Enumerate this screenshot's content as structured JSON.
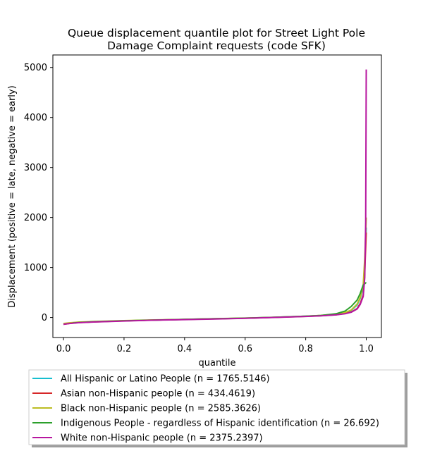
{
  "chart_data": {
    "type": "line",
    "title": "Queue displacement quantile plot for Street Light Pole\nDamage Complaint  requests (code SFK)",
    "xlabel": "quantile",
    "ylabel": "Displacement (positive = late, negative = early)",
    "xlim": [
      -0.035,
      1.05
    ],
    "ylim": [
      -400,
      5250
    ],
    "xticks": [
      0.0,
      0.2,
      0.4,
      0.6,
      0.8,
      1.0
    ],
    "xtick_labels": [
      "0.0",
      "0.2",
      "0.4",
      "0.6",
      "0.8",
      "1.0"
    ],
    "yticks": [
      0,
      1000,
      2000,
      3000,
      4000,
      5000
    ],
    "ytick_labels": [
      "0",
      "1000",
      "2000",
      "3000",
      "4000",
      "5000"
    ],
    "grid": false,
    "legend_position": "below-plot",
    "series": [
      {
        "name": "All Hispanic or Latino People (n = 1765.5146)",
        "color": "#17becf",
        "x": [
          0.0,
          0.02,
          0.05,
          0.1,
          0.2,
          0.3,
          0.4,
          0.5,
          0.6,
          0.7,
          0.8,
          0.85,
          0.9,
          0.93,
          0.95,
          0.97,
          0.98,
          0.99,
          0.995,
          1.0
        ],
        "y": [
          -130,
          -115,
          -100,
          -85,
          -65,
          -50,
          -38,
          -25,
          -12,
          5,
          25,
          40,
          65,
          95,
          140,
          250,
          380,
          600,
          1100,
          1800
        ]
      },
      {
        "name": "Asian non-Hispanic people (n = 434.4619)",
        "color": "#d62728",
        "x": [
          0.0,
          0.02,
          0.05,
          0.1,
          0.2,
          0.3,
          0.4,
          0.5,
          0.6,
          0.7,
          0.8,
          0.85,
          0.9,
          0.93,
          0.95,
          0.97,
          0.98,
          0.99,
          0.995,
          1.0
        ],
        "y": [
          -135,
          -118,
          -102,
          -88,
          -67,
          -52,
          -40,
          -27,
          -14,
          3,
          22,
          35,
          55,
          80,
          110,
          180,
          280,
          450,
          900,
          1700
        ]
      },
      {
        "name": "Black non-Hispanic people (n = 2585.3626)",
        "color": "#bcbd22",
        "x": [
          0.0,
          0.02,
          0.05,
          0.1,
          0.2,
          0.3,
          0.4,
          0.5,
          0.6,
          0.7,
          0.8,
          0.85,
          0.9,
          0.93,
          0.95,
          0.97,
          0.98,
          0.99,
          0.995,
          1.0
        ],
        "y": [
          -120,
          -105,
          -92,
          -80,
          -62,
          -48,
          -36,
          -24,
          -11,
          6,
          26,
          42,
          68,
          100,
          150,
          270,
          400,
          650,
          1200,
          2000
        ]
      },
      {
        "name": "Indigenous People - regardless of Hispanic identification (n = 26.692)",
        "color": "#2ca02c",
        "x": [
          0.03,
          0.05,
          0.1,
          0.2,
          0.3,
          0.4,
          0.5,
          0.6,
          0.7,
          0.8,
          0.85,
          0.9,
          0.93,
          0.95,
          0.97,
          0.98,
          0.99,
          1.0
        ],
        "y": [
          -110,
          -100,
          -85,
          -65,
          -50,
          -38,
          -25,
          -12,
          5,
          25,
          40,
          75,
          130,
          220,
          350,
          480,
          650,
          700
        ]
      },
      {
        "name": "White non-Hispanic people (n = 2375.2397)",
        "color": "#b7169f",
        "x": [
          0.0,
          0.02,
          0.05,
          0.1,
          0.2,
          0.3,
          0.4,
          0.5,
          0.6,
          0.7,
          0.8,
          0.85,
          0.9,
          0.93,
          0.95,
          0.97,
          0.98,
          0.99,
          0.995,
          0.998,
          1.0
        ],
        "y": [
          -135,
          -120,
          -104,
          -90,
          -70,
          -54,
          -42,
          -29,
          -16,
          2,
          21,
          33,
          52,
          75,
          105,
          170,
          260,
          420,
          800,
          1900,
          4960
        ]
      }
    ]
  }
}
